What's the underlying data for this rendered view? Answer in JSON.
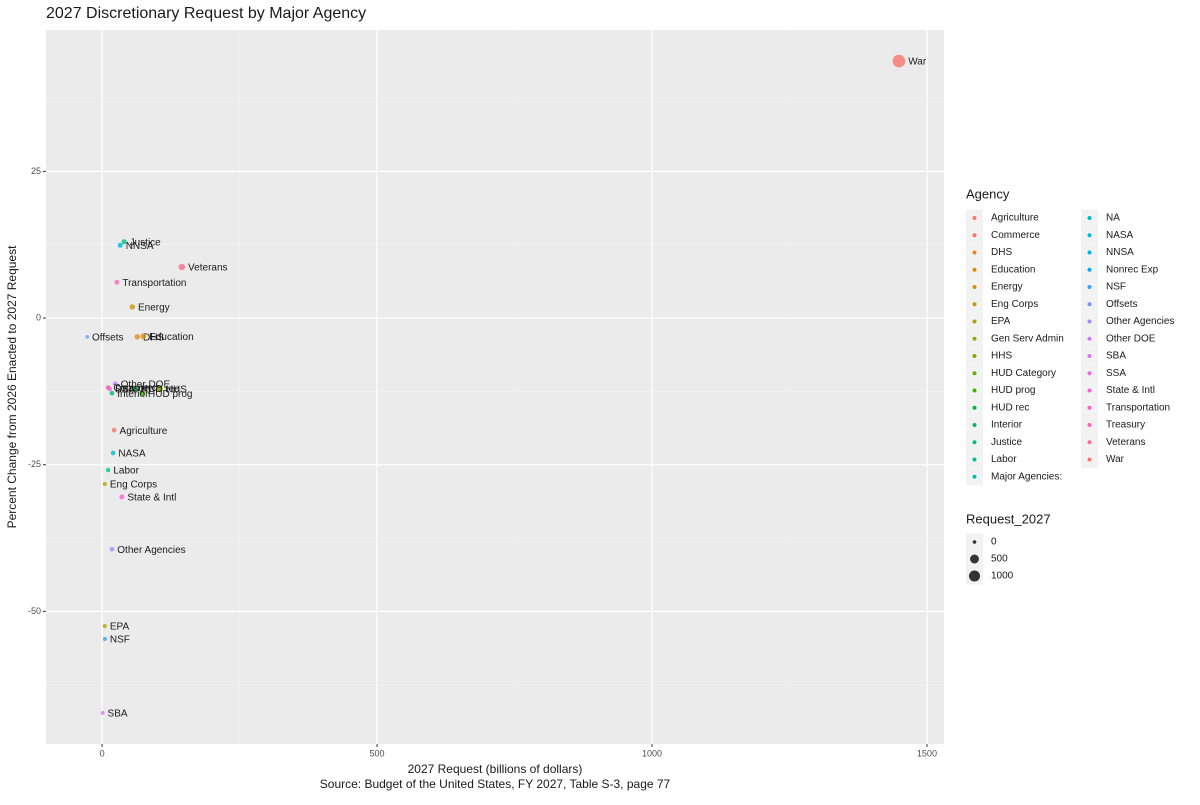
{
  "chart_data": {
    "type": "scatter",
    "title": "2027 Discretionary Request by Major Agency",
    "x_label": "2027 Request (billions of dollars)",
    "caption": "Source: Budget of the United States, FY 2027, Table S-3, page 77",
    "y_label": "Percent Change from 2026 Enacted to 2027 Request",
    "legend_title": "Agency",
    "size_legend_title": "Request_2027",
    "size_legend": [
      0,
      500,
      1000
    ],
    "xlim": [
      -102,
      1531
    ],
    "ylim": [
      -72.6,
      49.1
    ],
    "xticks": [
      0,
      500,
      1000,
      1500
    ],
    "yticks": [
      -50,
      -25,
      0,
      25
    ],
    "grid": true,
    "series": [
      {
        "name": "Agriculture",
        "color": "#F8766D",
        "x": [
          22
        ],
        "y": [
          -19.1
        ]
      },
      {
        "name": "Commerce",
        "color": "#F37B59",
        "x": [
          11
        ],
        "y": [
          -11.8
        ]
      },
      {
        "name": "DHS",
        "color": "#E7861B",
        "x": [
          64
        ],
        "y": [
          -3.2
        ]
      },
      {
        "name": "Education",
        "color": "#DB8E00",
        "x": [
          75
        ],
        "y": [
          -3.1
        ]
      },
      {
        "name": "Energy",
        "color": "#CF9400",
        "x": [
          55
        ],
        "y": [
          1.9
        ]
      },
      {
        "name": "Eng Corps",
        "color": "#C09B00",
        "x": [
          5
        ],
        "y": [
          -28.3
        ]
      },
      {
        "name": "EPA",
        "color": "#AEA200",
        "x": [
          5
        ],
        "y": [
          -52.5
        ]
      },
      {
        "name": "Gen Serv Admin",
        "color": "#9AA800",
        "x": [],
        "y": []
      },
      {
        "name": "HHS",
        "color": "#83AD00",
        "x": [
          105
        ],
        "y": [
          -12.1
        ]
      },
      {
        "name": "HUD Category",
        "color": "#64B200",
        "x": [],
        "y": []
      },
      {
        "name": "HUD prog",
        "color": "#39B600",
        "x": [
          73
        ],
        "y": [
          -12.8
        ]
      },
      {
        "name": "HUD rec",
        "color": "#00BA38",
        "x": [
          60
        ],
        "y": [
          -12.0
        ]
      },
      {
        "name": "Interior",
        "color": "#00BD5F",
        "x": [
          18
        ],
        "y": [
          -12.8
        ]
      },
      {
        "name": "Justice",
        "color": "#00BF7D",
        "x": [
          40
        ],
        "y": [
          13.0
        ]
      },
      {
        "name": "Labor",
        "color": "#00C097",
        "x": [
          11
        ],
        "y": [
          -25.9
        ]
      },
      {
        "name": "Major Agencies:",
        "color": "#00C0AF",
        "x": [],
        "y": []
      },
      {
        "name": "NA",
        "color": "#00BDC4",
        "x": [],
        "y": []
      },
      {
        "name": "NASA",
        "color": "#00BAD7",
        "x": [
          20
        ],
        "y": [
          -23.0
        ]
      },
      {
        "name": "NNSA",
        "color": "#00B4E8",
        "x": [
          33
        ],
        "y": [
          12.4
        ]
      },
      {
        "name": "Nonrec Exp",
        "color": "#00ACF6",
        "x": [],
        "y": []
      },
      {
        "name": "NSF",
        "color": "#35A2FF",
        "x": [
          5
        ],
        "y": [
          -54.7
        ]
      },
      {
        "name": "Offsets",
        "color": "#7997FF",
        "x": [
          -27
        ],
        "y": [
          -3.2
        ]
      },
      {
        "name": "Other Agencies",
        "color": "#A58AFF",
        "x": [
          18
        ],
        "y": [
          -39.4
        ]
      },
      {
        "name": "Other DOE",
        "color": "#C77CFF",
        "x": [
          24
        ],
        "y": [
          -11.2
        ]
      },
      {
        "name": "SBA",
        "color": "#DE71F9",
        "x": [
          1
        ],
        "y": [
          -67.3
        ]
      },
      {
        "name": "SSA",
        "color": "#EF67EB",
        "x": [
          14
        ],
        "y": [
          -12.1
        ]
      },
      {
        "name": "State & Intl",
        "color": "#FB61D7",
        "x": [
          36
        ],
        "y": [
          -30.5
        ]
      },
      {
        "name": "Transportation",
        "color": "#FF61C3",
        "x": [
          27
        ],
        "y": [
          6.1
        ]
      },
      {
        "name": "Treasury",
        "color": "#FF65AE",
        "x": [
          11
        ],
        "y": [
          -11.9
        ]
      },
      {
        "name": "Veterans",
        "color": "#FF6C91",
        "x": [
          145
        ],
        "y": [
          8.7
        ]
      },
      {
        "name": "War",
        "color": "#F8766D",
        "x": [
          1449
        ],
        "y": [
          43.8
        ]
      }
    ]
  }
}
